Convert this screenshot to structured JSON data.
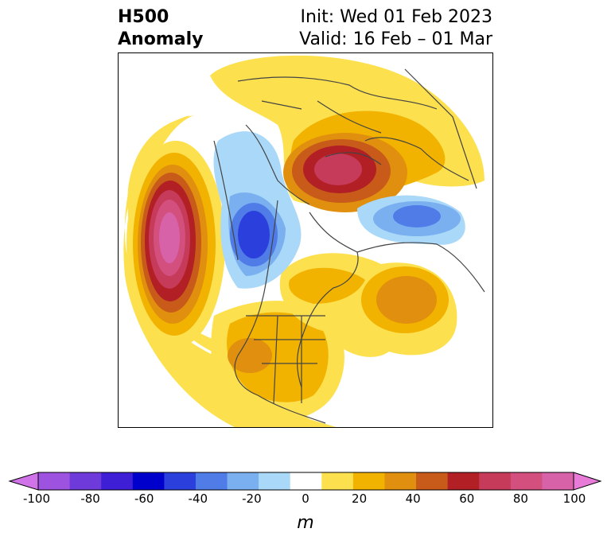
{
  "title": {
    "line1": "H500",
    "line2": "Anomaly"
  },
  "subtitle": {
    "init": "Init: Wed 01 Feb 2023",
    "valid": "Valid: 16 Feb – 01 Mar"
  },
  "colorbar": {
    "unit": "m",
    "ticks": [
      "-100",
      "-80",
      "-60",
      "-40",
      "-20",
      "0",
      "20",
      "40",
      "60",
      "80",
      "100"
    ],
    "colors": [
      "#d072e8",
      "#9e52e0",
      "#6e3ad9",
      "#3f1fd6",
      "#0000cc",
      "#2a3fdc",
      "#4f7ce6",
      "#7ab0f0",
      "#aad8f8",
      "#ffffff",
      "#fde04e",
      "#f2b200",
      "#e0900e",
      "#c85a1a",
      "#b21f24",
      "#c63a5a",
      "#d24f7e",
      "#d862a8",
      "#e87ad8"
    ]
  },
  "map": {
    "region": "North America / North Pole",
    "anomalies": [
      {
        "sign": "positive",
        "peak": "80",
        "location": "NE Pacific"
      },
      {
        "sign": "positive",
        "peak": "60",
        "location": "Siberia"
      },
      {
        "sign": "positive",
        "peak": "40",
        "location": "North Atlantic"
      },
      {
        "sign": "positive",
        "peak": "30",
        "location": "Southwestern US"
      },
      {
        "sign": "negative",
        "peak": "-60",
        "location": "Western Canada"
      },
      {
        "sign": "negative",
        "peak": "-30",
        "location": "Northern Europe"
      }
    ]
  }
}
